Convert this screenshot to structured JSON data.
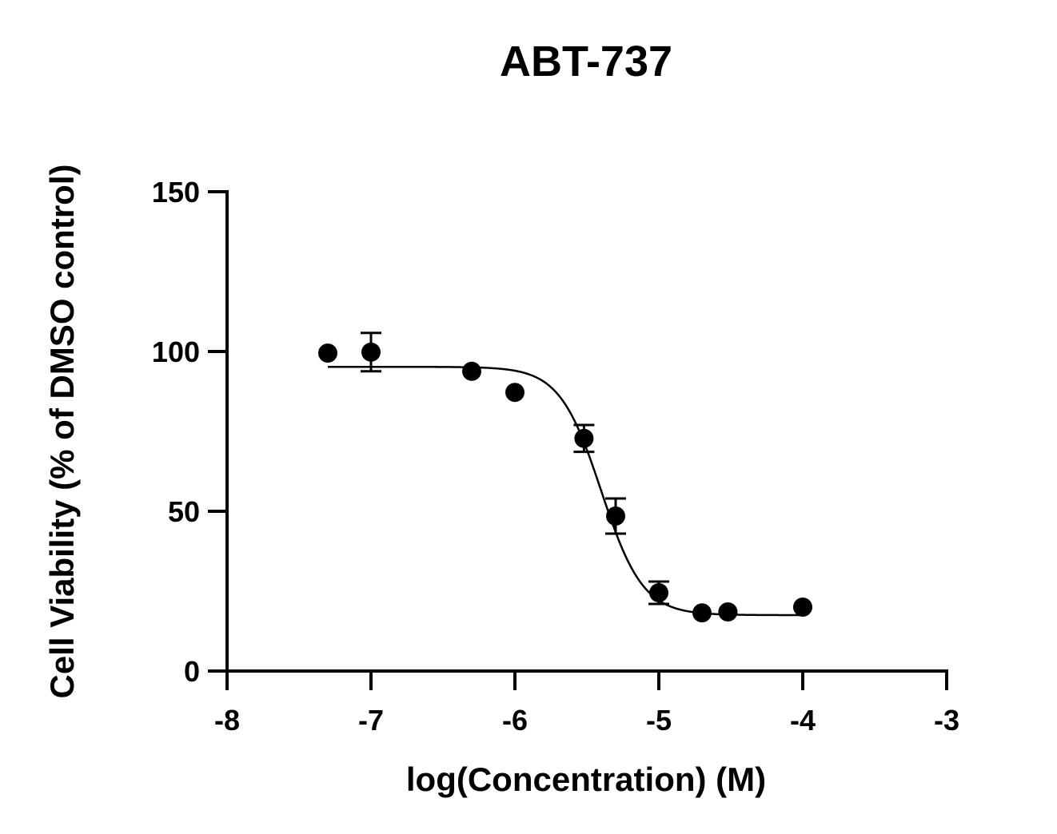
{
  "chart_data": {
    "type": "scatter",
    "title": "ABT-737",
    "xlabel": "log(Concentration) (M)",
    "ylabel": "Cell Viability (% of DMSO control)",
    "xlim": [
      -8,
      -3
    ],
    "ylim": [
      0,
      150
    ],
    "xticks": [
      -8,
      -7,
      -6,
      -5,
      -4,
      -3
    ],
    "yticks": [
      0,
      50,
      100,
      150
    ],
    "xtick_labels": [
      "-8",
      "-7",
      "-6",
      "-5",
      "-4",
      "-3"
    ],
    "ytick_labels": [
      "0",
      "50",
      "100",
      "150"
    ],
    "grid": false,
    "legend": "none",
    "points": [
      {
        "x": -7.3,
        "y": 99.5,
        "err": 0
      },
      {
        "x": -7.0,
        "y": 99.8,
        "err": 6
      },
      {
        "x": -6.3,
        "y": 93.8,
        "err": 0
      },
      {
        "x": -6.0,
        "y": 87.2,
        "err": 0
      },
      {
        "x": -5.52,
        "y": 72.8,
        "err": 4.2
      },
      {
        "x": -5.3,
        "y": 48.5,
        "err": 5.5
      },
      {
        "x": -5.0,
        "y": 24.5,
        "err": 3.5
      },
      {
        "x": -4.7,
        "y": 18.2,
        "err": 0
      },
      {
        "x": -4.52,
        "y": 18.5,
        "err": 0
      },
      {
        "x": -4.0,
        "y": 20.0,
        "err": 0
      }
    ],
    "fit": {
      "model": "four-parameter logistic",
      "top": 95.2,
      "bottom": 17.5,
      "log_ic50": -5.4,
      "hill_slope": 3.0,
      "x_range": [
        -7.3,
        -4.0
      ]
    },
    "colors": {
      "marker": "#000000",
      "line": "#000000"
    }
  }
}
